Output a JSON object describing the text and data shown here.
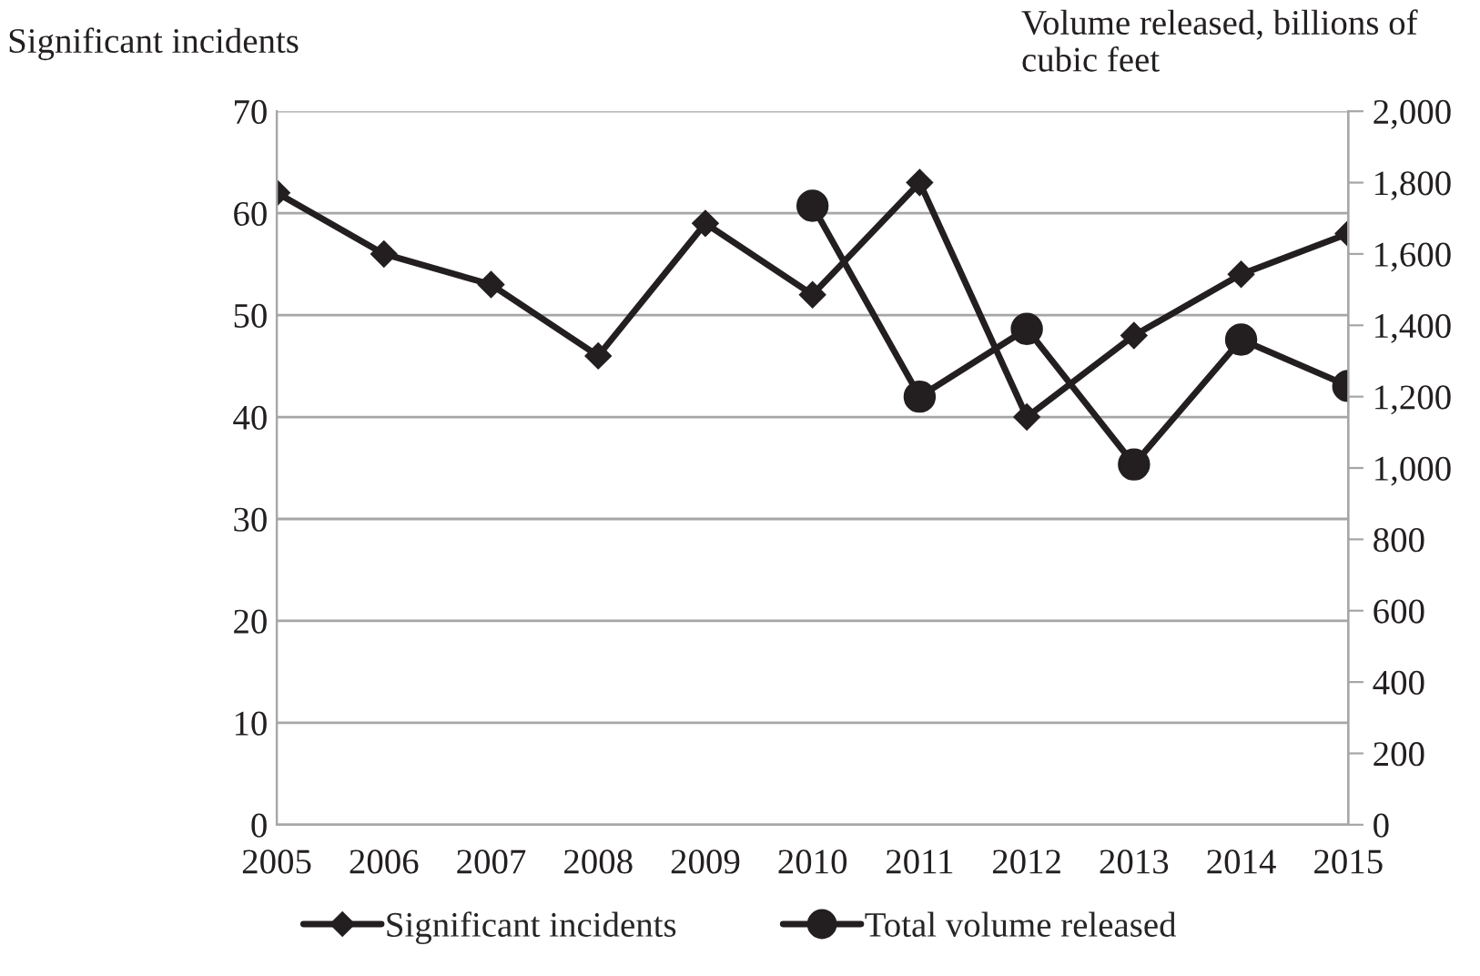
{
  "chart_data": {
    "type": "line",
    "ylabel": "Significant incidents",
    "y2label": "Volume released, billions of cubic feet",
    "x": [
      2005,
      2006,
      2007,
      2008,
      2009,
      2010,
      2011,
      2012,
      2013,
      2014,
      2015
    ],
    "xlim": [
      2005,
      2015
    ],
    "xticks": [
      2005,
      2006,
      2007,
      2008,
      2009,
      2010,
      2011,
      2012,
      2013,
      2014,
      2015
    ],
    "ylim": [
      0,
      70
    ],
    "yticks": [
      0,
      10,
      20,
      30,
      40,
      50,
      60,
      70
    ],
    "y2lim": [
      0,
      2000
    ],
    "y2ticks": [
      {
        "value": 0,
        "label": "0"
      },
      {
        "value": 200,
        "label": "200"
      },
      {
        "value": 400,
        "label": "400"
      },
      {
        "value": 600,
        "label": "600"
      },
      {
        "value": 800,
        "label": "800"
      },
      {
        "value": 1000,
        "label": "1,000"
      },
      {
        "value": 1200,
        "label": "1,200"
      },
      {
        "value": 1400,
        "label": "1,400"
      },
      {
        "value": 1600,
        "label": "1,600"
      },
      {
        "value": 1800,
        "label": "1,800"
      },
      {
        "value": 2000,
        "label": "2,000"
      }
    ],
    "grid": "y",
    "legend": "bottom",
    "series": [
      {
        "name": "Significant incidents",
        "color": "#231f20",
        "marker": "diamond",
        "values": [
          62,
          56,
          53,
          46,
          59,
          52,
          63,
          40,
          48,
          54,
          58
        ]
      },
      {
        "name": "Total volume released",
        "color": "#231f20",
        "marker": "circle",
        "axis": "y2",
        "x": [
          2010,
          2011,
          2012,
          2013,
          2014,
          2015
        ],
        "values": [
          1735,
          1200,
          1390,
          1010,
          1360,
          1230
        ]
      }
    ]
  }
}
